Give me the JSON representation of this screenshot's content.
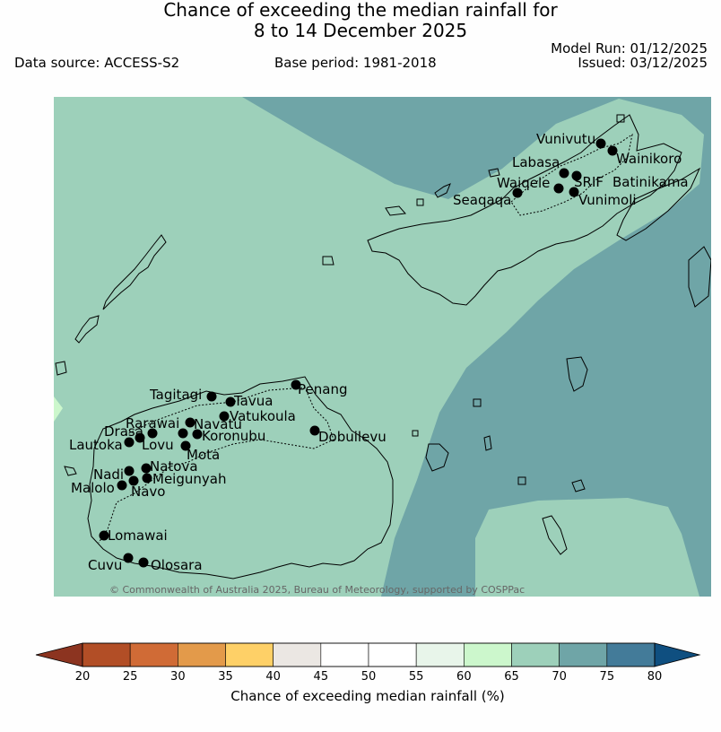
{
  "header": {
    "title_line1": "Chance of exceeding the median rainfall for",
    "title_line2": "8 to 14 December 2025",
    "data_source": "Data source: ACCESS-S2",
    "base_period": "Base period: 1981-2018",
    "model_run": "Model Run: 01/12/2025",
    "issued": "Issued: 03/12/2025"
  },
  "map": {
    "region": "Fiji",
    "credit": "© Commonwealth of Australia 2025, Bureau of Meteorology, supported by COSPPac",
    "colors": {
      "c60_65": "#ccf7cc",
      "c65_70": "#9dd0ba",
      "c70_75": "#6fa5a7",
      "coast": "#000000",
      "station": "#000000"
    },
    "stations": [
      {
        "name": "Vunivutu"
      },
      {
        "name": "Wainikoro"
      },
      {
        "name": "Labasa"
      },
      {
        "name": "Waiqele"
      },
      {
        "name": "SRIF"
      },
      {
        "name": "Batinikama"
      },
      {
        "name": "Seaqaqa"
      },
      {
        "name": "Vunimoli"
      },
      {
        "name": "Tagitagi"
      },
      {
        "name": "Penang"
      },
      {
        "name": "Tavua"
      },
      {
        "name": "Vatukoula"
      },
      {
        "name": "Rarawai"
      },
      {
        "name": "Navatu"
      },
      {
        "name": "Drasa"
      },
      {
        "name": "Koronubu"
      },
      {
        "name": "Lautoka"
      },
      {
        "name": "Lovu"
      },
      {
        "name": "Dobuilevu"
      },
      {
        "name": "Mota"
      },
      {
        "name": "Natova"
      },
      {
        "name": "Nadi"
      },
      {
        "name": "Meigunyah"
      },
      {
        "name": "Malolo"
      },
      {
        "name": "Navo"
      },
      {
        "name": "Lomawai"
      },
      {
        "name": "Cuvu"
      },
      {
        "name": "Olosara"
      }
    ]
  },
  "colorbar": {
    "label": "Chance of exceeding median rainfall (%)",
    "ticks": [
      "20",
      "25",
      "30",
      "35",
      "40",
      "45",
      "50",
      "55",
      "60",
      "65",
      "70",
      "75",
      "80"
    ],
    "bins": [
      {
        "from": 20,
        "to": 25,
        "color": "#b24e26"
      },
      {
        "from": 25,
        "to": 30,
        "color": "#d06b36"
      },
      {
        "from": 30,
        "to": 35,
        "color": "#e39a4a"
      },
      {
        "from": 35,
        "to": 40,
        "color": "#fed067"
      },
      {
        "from": 40,
        "to": 45,
        "color": "#ebe7e3"
      },
      {
        "from": 45,
        "to": 50,
        "color": "#ffffff"
      },
      {
        "from": 50,
        "to": 55,
        "color": "#ffffff"
      },
      {
        "from": 55,
        "to": 60,
        "color": "#e8f5ea"
      },
      {
        "from": 60,
        "to": 65,
        "color": "#ccf7cc"
      },
      {
        "from": 65,
        "to": 70,
        "color": "#9dd0ba"
      },
      {
        "from": 70,
        "to": 75,
        "color": "#6fa5a7"
      },
      {
        "from": 75,
        "to": 80,
        "color": "#437b99"
      }
    ],
    "under_color": "#8c3420",
    "over_color": "#0f4f80"
  }
}
